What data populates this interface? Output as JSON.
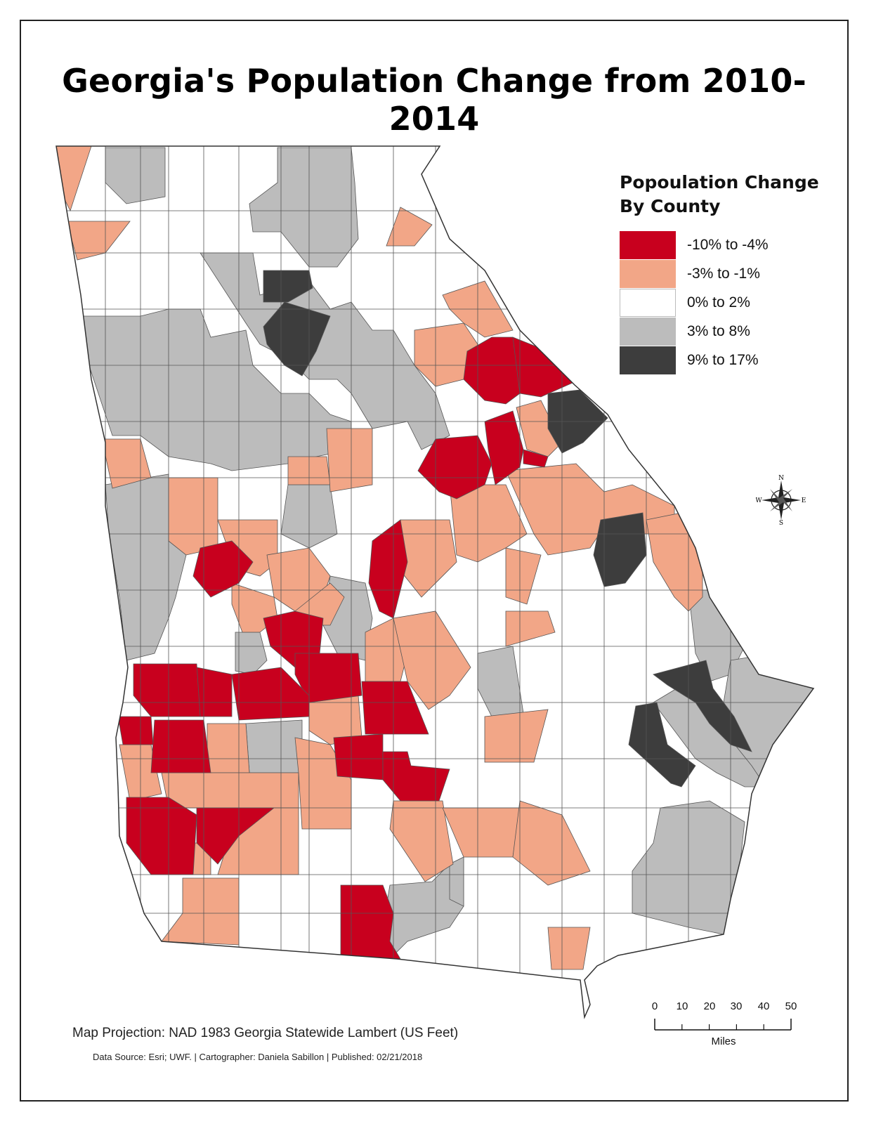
{
  "title": "Georgia's Population Change from 2010-2014",
  "legend": {
    "title_line1": "Popoulation Change",
    "title_line2": "By County",
    "classes": [
      {
        "label": "-10% to -4%",
        "color": "#c8001e"
      },
      {
        "label": "-3% to -1%",
        "color": "#f2a687"
      },
      {
        "label": "0% to 2%",
        "color": "#ffffff"
      },
      {
        "label": "3% to 8%",
        "color": "#bcbcbc"
      },
      {
        "label": "9% to 17%",
        "color": "#3d3d3d"
      }
    ]
  },
  "compass": {
    "n": "N",
    "s": "S",
    "e": "E",
    "w": "W"
  },
  "projection": "Map Projection: NAD 1983 Georgia Statewide Lambert (US Feet)",
  "credits": "Data Source: Esri; UWF.  |  Cartographer: Daniela Sabillon  |  Published: 02/21/2018",
  "scale": {
    "ticks": [
      "0",
      "10",
      "20",
      "30",
      "40",
      "50"
    ],
    "units": "Miles"
  },
  "colors": {
    "border": "#222222",
    "county_line": "#555555"
  }
}
